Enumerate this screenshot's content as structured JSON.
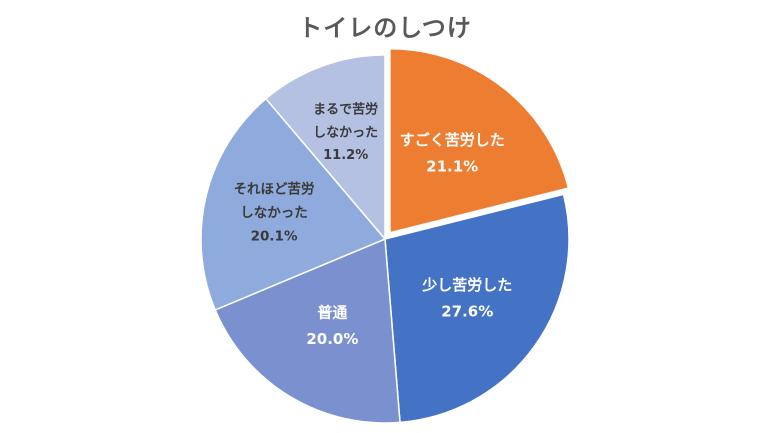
{
  "chart_data": {
    "type": "pie",
    "title": "トイレのしつけ",
    "slices": [
      {
        "label": [
          "すごく苦労した"
        ],
        "value": 21.1,
        "value_label": "21.1%",
        "color": "#ED7D31",
        "text_color": "#ffffff",
        "exploded": true
      },
      {
        "label": [
          "少し苦労した"
        ],
        "value": 27.6,
        "value_label": "27.6%",
        "color": "#4472C4",
        "text_color": "#ffffff",
        "exploded": false
      },
      {
        "label": [
          "普通"
        ],
        "value": 20.0,
        "value_label": "20.0%",
        "color": "#7A90CF",
        "text_color": "#ffffff",
        "exploded": false
      },
      {
        "label": [
          "それほど苦労",
          "しなかった"
        ],
        "value": 20.1,
        "value_label": "20.1%",
        "color": "#8FAADC",
        "text_color": "#3a3a3a",
        "exploded": false
      },
      {
        "label": [
          "まるで苦労",
          "しなかった"
        ],
        "value": 11.2,
        "value_label": "11.2%",
        "color": "#B4C1E3",
        "text_color": "#3a3a3a",
        "exploded": false
      }
    ]
  }
}
